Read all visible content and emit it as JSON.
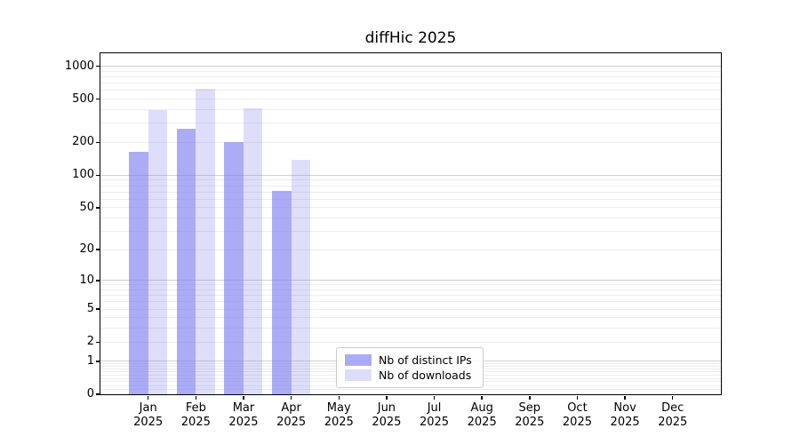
{
  "chart_data": {
    "type": "bar",
    "title": "diffHic 2025",
    "categories": [
      "Jan 2025",
      "Feb 2025",
      "Mar 2025",
      "Apr 2025",
      "May 2025",
      "Jun 2025",
      "Jul 2025",
      "Aug 2025",
      "Sep 2025",
      "Oct 2025",
      "Nov 2025",
      "Dec 2025"
    ],
    "series": [
      {
        "name": "Nb of distinct IPs",
        "color": "rgba(124,124,240,0.63)",
        "values": [
          165,
          267,
          203,
          72,
          null,
          null,
          null,
          null,
          null,
          null,
          null,
          null
        ]
      },
      {
        "name": "Nb of downloads",
        "color": "rgba(124,124,240,0.25)",
        "values": [
          397,
          622,
          408,
          138,
          null,
          null,
          null,
          null,
          null,
          null,
          null,
          null
        ]
      }
    ],
    "xlabel": "",
    "ylabel": "",
    "yscale": "log1p",
    "ylim": [
      0,
      1315
    ],
    "y_ticks": [
      0,
      1,
      2,
      5,
      10,
      20,
      50,
      100,
      200,
      500,
      1000
    ],
    "grid": "horizontal major+minor",
    "legend_position": "lower center inside plot"
  },
  "style": {
    "background": "#ffffff",
    "major_grid_color": "#d2d2d2",
    "minor_grid_color": "#ededed",
    "spine_color": "#000000",
    "legend_border_color": "#cccccc",
    "bar_dark_rendered": "#a8a8f0",
    "bar_light_rendered": "#dcdcf8"
  }
}
